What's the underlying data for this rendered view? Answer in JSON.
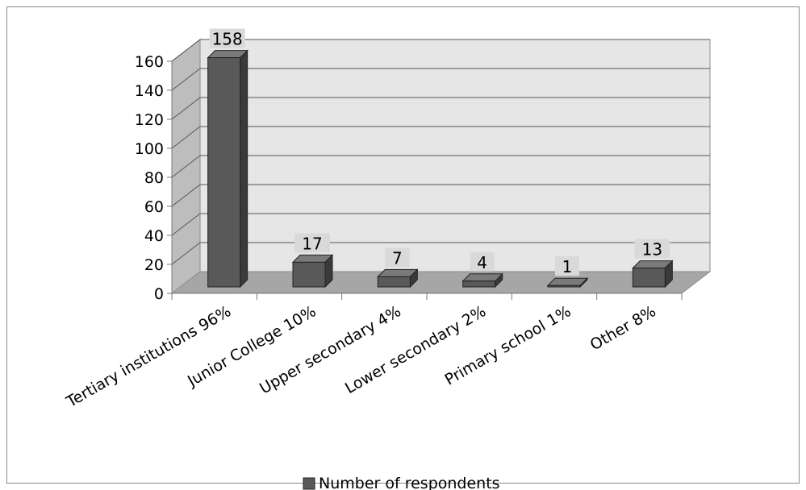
{
  "chart_data": {
    "type": "bar",
    "style": "3d-column",
    "categories": [
      "Tertiary institutions 96%",
      "Junior College 10%",
      "Upper secondary 4%",
      "Lower secondary 2%",
      "Primary school 1%",
      "Other 8%"
    ],
    "series": [
      {
        "name": "Number of respondents",
        "values": [
          158,
          17,
          7,
          4,
          1,
          13
        ]
      }
    ],
    "title": "",
    "xlabel": "",
    "ylabel": "",
    "ylim": [
      0,
      160
    ],
    "yticks": [
      0,
      20,
      40,
      60,
      80,
      100,
      120,
      140,
      160
    ],
    "grid": true,
    "legend_position": "bottom",
    "colors": {
      "bar_front": "#595959",
      "bar_side": "#3a3a3a",
      "bar_top": "#7a7a7a",
      "back_wall": "#e6e6e6",
      "side_wall": "#bdbdbd",
      "floor": "#a6a6a6",
      "label_box": "#d9d9d9"
    }
  }
}
